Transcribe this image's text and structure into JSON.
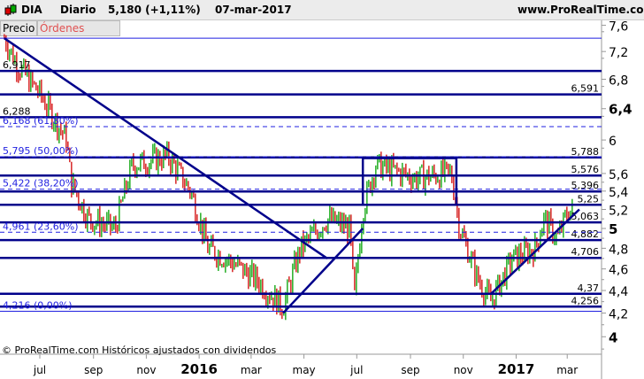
{
  "header": {
    "symbol": "DIA",
    "period": "Diario",
    "price": "5,180 (+1,11%)",
    "date": "07-mar-2017",
    "site": "www.ProRealTime.com"
  },
  "tabs": [
    {
      "label": "Precio"
    },
    {
      "label": "Órdenes recientemente ejecutadas"
    }
  ],
  "footer": {
    "copyright": "© ProRealTime.com  Históricos ajustados con dividendos"
  },
  "colors": {
    "up": "#00a000",
    "down": "#d00000",
    "lines": "#00008b",
    "fib": "#1f1fe0"
  },
  "chart_data": {
    "type": "candlestick",
    "y_scale": "log",
    "ylim": [
      3.85,
      7.65
    ],
    "y_ticks": [
      {
        "v": 7.6,
        "label": "7,6"
      },
      {
        "v": 7.2,
        "label": "7,2"
      },
      {
        "v": 6.8,
        "label": "6,8"
      },
      {
        "v": 6.4,
        "label": "6,4",
        "bold": true
      },
      {
        "v": 6,
        "label": "6"
      },
      {
        "v": 5.6,
        "label": "5,6"
      },
      {
        "v": 5.4,
        "label": "5,4"
      },
      {
        "v": 5.2,
        "label": "5,2"
      },
      {
        "v": 5,
        "label": "5",
        "bold": true
      },
      {
        "v": 4.8,
        "label": "4,8"
      },
      {
        "v": 4.6,
        "label": "4,6"
      },
      {
        "v": 4.4,
        "label": "4,4"
      },
      {
        "v": 4.2,
        "label": "4,2"
      },
      {
        "v": 4,
        "label": "4",
        "bold": true
      }
    ],
    "x_ticks": [
      {
        "date": "2015-07-01",
        "label": "jul"
      },
      {
        "date": "2015-09-01",
        "label": "sep"
      },
      {
        "date": "2015-11-01",
        "label": "nov"
      },
      {
        "date": "2016-01-01",
        "label": "2016",
        "bold": true
      },
      {
        "date": "2016-03-01",
        "label": "mar"
      },
      {
        "date": "2016-05-01",
        "label": "may"
      },
      {
        "date": "2016-07-01",
        "label": "jul"
      },
      {
        "date": "2016-09-01",
        "label": "sep"
      },
      {
        "date": "2016-11-01",
        "label": "nov"
      },
      {
        "date": "2017-01-01",
        "label": "2017",
        "bold": true
      },
      {
        "date": "2017-03-01",
        "label": "mar"
      }
    ],
    "price_path_approx": [
      [
        "2015-05-21",
        7.4
      ],
      [
        "2015-06-05",
        7.0
      ],
      [
        "2015-07-01",
        6.6
      ],
      [
        "2015-07-16",
        6.3
      ],
      [
        "2015-08-01",
        6.0
      ],
      [
        "2015-08-06",
        5.5
      ],
      [
        "2015-08-26",
        5.1
      ],
      [
        "2015-09-26",
        5.0
      ],
      [
        "2015-10-16",
        5.7
      ],
      [
        "2015-11-26",
        5.8
      ],
      [
        "2015-12-22",
        5.4
      ],
      [
        "2016-01-11",
        4.8
      ],
      [
        "2016-02-01",
        4.7
      ],
      [
        "2016-03-07",
        4.5
      ],
      [
        "2016-04-07",
        4.25
      ],
      [
        "2016-04-27",
        4.8
      ],
      [
        "2016-05-28",
        5.1
      ],
      [
        "2016-06-23",
        5.0
      ],
      [
        "2016-06-28",
        4.3
      ],
      [
        "2016-07-08",
        5.2
      ],
      [
        "2016-07-23",
        5.7
      ],
      [
        "2016-09-07",
        5.55
      ],
      [
        "2016-10-18",
        5.6
      ],
      [
        "2016-10-28",
        5.0
      ],
      [
        "2016-11-18",
        4.5
      ],
      [
        "2016-12-03",
        4.3
      ],
      [
        "2016-12-28",
        4.7
      ],
      [
        "2017-01-23",
        4.8
      ],
      [
        "2017-02-02",
        5.1
      ],
      [
        "2017-02-18",
        4.9
      ],
      [
        "2017-03-03",
        5.2
      ],
      [
        "2017-03-07",
        5.18
      ]
    ],
    "levels": [
      {
        "v": 6.917,
        "label": "6,917",
        "side": "left",
        "style": "thick"
      },
      {
        "v": 6.591,
        "label": "6,591",
        "side": "right",
        "style": "thick"
      },
      {
        "v": 6.288,
        "label": "6,288",
        "side": "left",
        "style": "thick"
      },
      {
        "v": 5.788,
        "label": "5,788",
        "side": "right",
        "style": "thick"
      },
      {
        "v": 5.576,
        "label": "5,576",
        "side": "right",
        "style": "thick"
      },
      {
        "v": 5.396,
        "label": "5,396",
        "side": "right",
        "style": "thick"
      },
      {
        "v": 5.25,
        "label": "5,25",
        "side": "right",
        "style": "thick"
      },
      {
        "v": 5.063,
        "label": "5,063",
        "side": "right",
        "style": "thick"
      },
      {
        "v": 4.882,
        "label": "4,882",
        "side": "right",
        "style": "thick"
      },
      {
        "v": 4.706,
        "label": "4,706",
        "side": "right",
        "style": "thick"
      },
      {
        "v": 4.37,
        "label": "4,37",
        "side": "right",
        "style": "thick"
      },
      {
        "v": 4.256,
        "label": "4,256",
        "side": "right",
        "style": "thick"
      }
    ],
    "fibonacci": [
      {
        "v": 6.168,
        "label": "6,168 (61,80%)"
      },
      {
        "v": 5.795,
        "label": "5,795 (50,00%)"
      },
      {
        "v": 5.422,
        "label": "5,422 (38,20%)"
      },
      {
        "v": 4.961,
        "label": "4,961 (23,60%)"
      },
      {
        "v": 4.216,
        "label": "4,216 (0,00%)"
      }
    ],
    "top_line": 7.4,
    "trendlines": [
      {
        "from": [
          "2015-05-21",
          7.4
        ],
        "to": [
          "2016-05-28",
          4.7
        ]
      },
      {
        "from": [
          "2016-04-07",
          4.2
        ],
        "to": [
          "2016-07-08",
          5.0
        ]
      },
      {
        "from": [
          "2016-12-03",
          4.37
        ],
        "to": [
          "2017-03-15",
          5.2
        ]
      }
    ],
    "box": {
      "from": [
        "2016-07-08",
        5.78
      ],
      "to": [
        "2016-10-24",
        5.25
      ]
    }
  }
}
